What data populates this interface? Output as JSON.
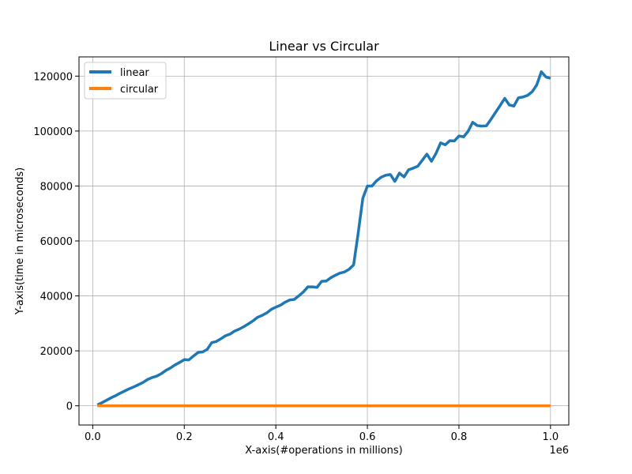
{
  "chart_data": {
    "type": "line",
    "title": "Linear vs Circular",
    "xlabel": "X-axis(#operations in millions)",
    "ylabel": "Y-axis(time in microseconds)",
    "x_offset_label": "1e6",
    "xlim": [
      -30000,
      1040000
    ],
    "ylim": [
      -7000,
      127000
    ],
    "x_ticks": [
      0,
      200000,
      400000,
      600000,
      800000,
      1000000
    ],
    "x_tick_labels": [
      "0.0",
      "0.2",
      "0.4",
      "0.6",
      "0.8",
      "1.0"
    ],
    "y_ticks": [
      0,
      20000,
      40000,
      60000,
      80000,
      100000,
      120000
    ],
    "y_tick_labels": [
      "0",
      "20000",
      "40000",
      "60000",
      "80000",
      "100000",
      "120000"
    ],
    "grid": true,
    "legend_position": "top-left",
    "series": [
      {
        "name": "linear",
        "color": "#1f77b4",
        "points": [
          [
            10000,
            300
          ],
          [
            20000,
            1100
          ],
          [
            30000,
            2000
          ],
          [
            40000,
            2900
          ],
          [
            50000,
            3700
          ],
          [
            60000,
            4600
          ],
          [
            70000,
            5400
          ],
          [
            80000,
            6200
          ],
          [
            90000,
            6900
          ],
          [
            100000,
            7700
          ],
          [
            110000,
            8500
          ],
          [
            120000,
            9600
          ],
          [
            130000,
            10300
          ],
          [
            140000,
            10800
          ],
          [
            150000,
            11700
          ],
          [
            160000,
            12900
          ],
          [
            170000,
            13800
          ],
          [
            180000,
            14900
          ],
          [
            190000,
            15800
          ],
          [
            200000,
            16800
          ],
          [
            210000,
            16700
          ],
          [
            220000,
            18100
          ],
          [
            230000,
            19400
          ],
          [
            240000,
            19600
          ],
          [
            250000,
            20500
          ],
          [
            260000,
            23000
          ],
          [
            270000,
            23400
          ],
          [
            280000,
            24400
          ],
          [
            290000,
            25500
          ],
          [
            300000,
            26100
          ],
          [
            310000,
            27200
          ],
          [
            320000,
            27900
          ],
          [
            330000,
            28800
          ],
          [
            340000,
            29800
          ],
          [
            350000,
            30900
          ],
          [
            360000,
            32200
          ],
          [
            370000,
            32900
          ],
          [
            380000,
            33800
          ],
          [
            390000,
            35100
          ],
          [
            400000,
            35900
          ],
          [
            410000,
            36600
          ],
          [
            420000,
            37700
          ],
          [
            430000,
            38500
          ],
          [
            440000,
            38700
          ],
          [
            450000,
            40000
          ],
          [
            460000,
            41400
          ],
          [
            470000,
            43300
          ],
          [
            480000,
            43300
          ],
          [
            490000,
            43100
          ],
          [
            500000,
            45300
          ],
          [
            510000,
            45400
          ],
          [
            520000,
            46600
          ],
          [
            530000,
            47500
          ],
          [
            540000,
            48300
          ],
          [
            550000,
            48700
          ],
          [
            560000,
            49700
          ],
          [
            570000,
            51300
          ],
          [
            580000,
            63000
          ],
          [
            590000,
            75500
          ],
          [
            600000,
            80000
          ],
          [
            610000,
            80000
          ],
          [
            620000,
            81900
          ],
          [
            630000,
            83200
          ],
          [
            640000,
            83900
          ],
          [
            650000,
            84200
          ],
          [
            660000,
            81700
          ],
          [
            670000,
            84700
          ],
          [
            680000,
            83300
          ],
          [
            690000,
            85900
          ],
          [
            700000,
            86500
          ],
          [
            710000,
            87200
          ],
          [
            720000,
            89400
          ],
          [
            730000,
            91600
          ],
          [
            740000,
            89000
          ],
          [
            750000,
            91900
          ],
          [
            760000,
            95700
          ],
          [
            770000,
            95000
          ],
          [
            780000,
            96500
          ],
          [
            790000,
            96400
          ],
          [
            800000,
            98200
          ],
          [
            810000,
            97900
          ],
          [
            820000,
            99900
          ],
          [
            830000,
            103200
          ],
          [
            840000,
            102000
          ],
          [
            850000,
            101800
          ],
          [
            860000,
            101900
          ],
          [
            870000,
            104300
          ],
          [
            880000,
            106800
          ],
          [
            890000,
            109300
          ],
          [
            900000,
            111900
          ],
          [
            910000,
            109500
          ],
          [
            920000,
            109100
          ],
          [
            930000,
            112100
          ],
          [
            940000,
            112400
          ],
          [
            950000,
            113000
          ],
          [
            960000,
            114300
          ],
          [
            970000,
            116800
          ],
          [
            980000,
            121600
          ],
          [
            990000,
            119700
          ],
          [
            1000000,
            119200
          ]
        ]
      },
      {
        "name": "circular",
        "color": "#ff7f0e",
        "points": [
          [
            10000,
            0
          ],
          [
            100000,
            0
          ],
          [
            200000,
            0
          ],
          [
            300000,
            0
          ],
          [
            400000,
            0
          ],
          [
            500000,
            0
          ],
          [
            600000,
            0
          ],
          [
            700000,
            0
          ],
          [
            800000,
            0
          ],
          [
            900000,
            0
          ],
          [
            1000000,
            0
          ]
        ]
      }
    ]
  }
}
